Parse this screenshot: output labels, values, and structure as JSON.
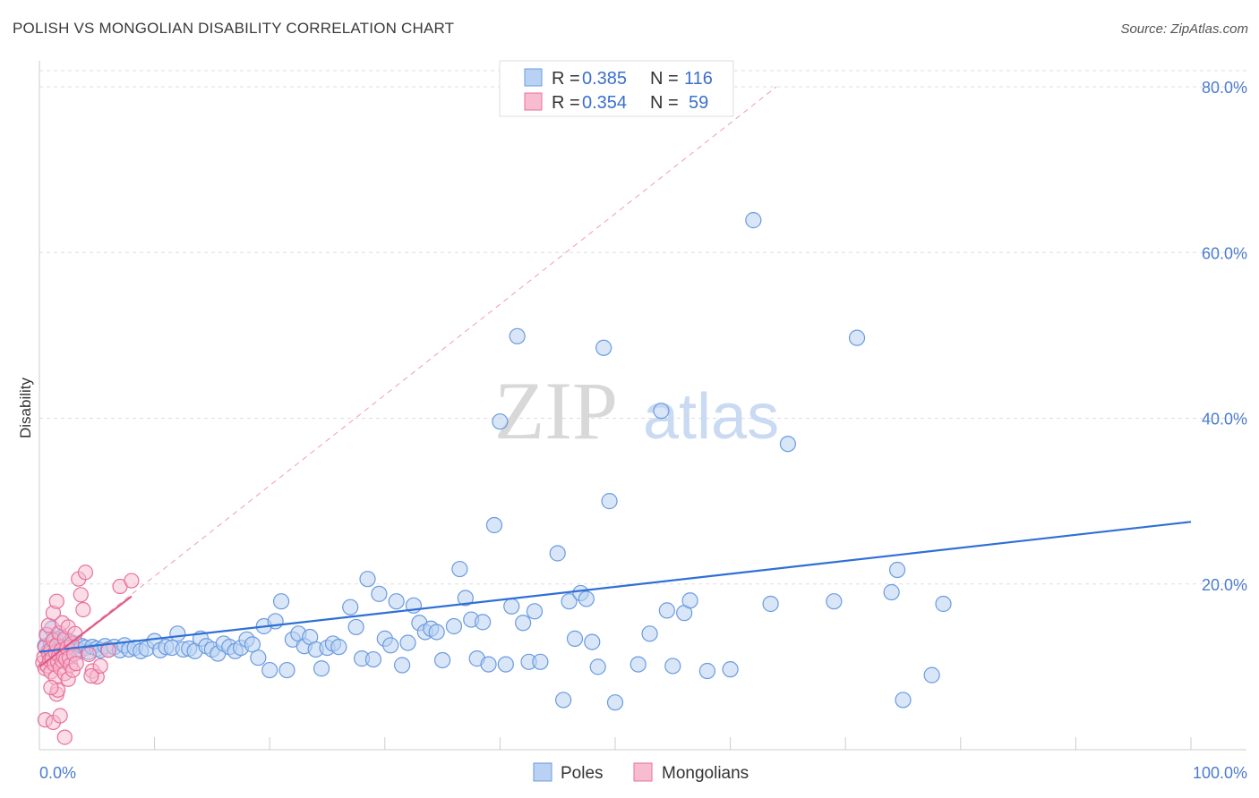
{
  "header": {
    "title": "POLISH VS MONGOLIAN DISABILITY CORRELATION CHART",
    "source": "Source: ZipAtlas.com"
  },
  "watermark": {
    "zip": "ZIP",
    "atlas": "atlas"
  },
  "colors": {
    "poles": "#6a9be0",
    "poles_fill": "#b9d1f3",
    "mongolians": "#e8709a",
    "mongolians_fill": "#f7bccf",
    "axis_text": "#4a7bd0",
    "grid": "#dddddd"
  },
  "legend": {
    "rows": [
      {
        "r_label": "R = ",
        "r_value": "0.385",
        "n_label": "N = ",
        "n_value": "116"
      },
      {
        "r_label": "R = ",
        "r_value": "0.354",
        "n_label": "N = ",
        "n_value": "59"
      }
    ]
  },
  "bottom_legend": [
    "Poles",
    "Mongolians"
  ],
  "chart_data": {
    "type": "scatter",
    "title": "POLISH VS MONGOLIAN DISABILITY CORRELATION CHART",
    "xlabel": "",
    "ylabel": "Disability",
    "xlim": [
      0,
      100
    ],
    "ylim": [
      0,
      82
    ],
    "x_tick_labels": [
      "0.0%",
      "100.0%"
    ],
    "y_ticks": [
      20,
      40,
      60,
      80
    ],
    "y_tick_labels": [
      "20.0%",
      "40.0%",
      "60.0%",
      "80.0%"
    ],
    "grid": true,
    "legend_position": "top-center",
    "series": [
      {
        "name": "Poles",
        "r": 0.385,
        "n": 116,
        "trend": {
          "x": [
            0,
            100
          ],
          "y": [
            11.8,
            27.5
          ]
        },
        "points": [
          [
            0.5,
            12.5
          ],
          [
            0.7,
            13.8
          ],
          [
            0.8,
            11.9
          ],
          [
            1.0,
            12.8
          ],
          [
            1.1,
            14.6
          ],
          [
            1.3,
            12.1
          ],
          [
            1.4,
            13.3
          ],
          [
            1.5,
            12.4
          ],
          [
            1.6,
            11.7
          ],
          [
            1.8,
            12.9
          ],
          [
            1.9,
            13.5
          ],
          [
            2.0,
            12.2
          ],
          [
            2.1,
            12.7
          ],
          [
            2.2,
            13.1
          ],
          [
            2.3,
            11.8
          ],
          [
            2.5,
            12.4
          ],
          [
            2.6,
            12.0
          ],
          [
            2.7,
            13.0
          ],
          [
            2.9,
            12.3
          ],
          [
            3.1,
            12.8
          ],
          [
            3.3,
            12.0
          ],
          [
            3.5,
            11.9
          ],
          [
            3.7,
            12.5
          ],
          [
            4.0,
            12.3
          ],
          [
            4.3,
            11.8
          ],
          [
            4.6,
            12.4
          ],
          [
            5.0,
            12.2
          ],
          [
            5.3,
            12.0
          ],
          [
            5.7,
            12.5
          ],
          [
            6.0,
            12.1
          ],
          [
            6.5,
            12.4
          ],
          [
            7.0,
            12.0
          ],
          [
            7.4,
            12.6
          ],
          [
            7.8,
            12.1
          ],
          [
            8.3,
            12.3
          ],
          [
            8.8,
            11.9
          ],
          [
            9.3,
            12.2
          ],
          [
            10.0,
            13.1
          ],
          [
            10.5,
            12.0
          ],
          [
            11.0,
            12.4
          ],
          [
            11.5,
            12.3
          ],
          [
            12.0,
            14.0
          ],
          [
            12.5,
            12.1
          ],
          [
            13.0,
            12.2
          ],
          [
            13.5,
            11.9
          ],
          [
            14.0,
            13.4
          ],
          [
            14.5,
            12.5
          ],
          [
            15.0,
            12.1
          ],
          [
            15.5,
            11.6
          ],
          [
            16.0,
            12.8
          ],
          [
            16.5,
            12.4
          ],
          [
            17.0,
            11.9
          ],
          [
            17.5,
            12.3
          ],
          [
            18.0,
            13.3
          ],
          [
            18.5,
            12.7
          ],
          [
            19.0,
            11.1
          ],
          [
            19.5,
            14.9
          ],
          [
            20.0,
            9.6
          ],
          [
            20.5,
            15.5
          ],
          [
            21.0,
            17.9
          ],
          [
            21.5,
            9.6
          ],
          [
            22.0,
            13.3
          ],
          [
            22.5,
            14.0
          ],
          [
            23.0,
            12.5
          ],
          [
            23.5,
            13.6
          ],
          [
            24.0,
            12.1
          ],
          [
            24.5,
            9.8
          ],
          [
            25.0,
            12.3
          ],
          [
            25.5,
            12.8
          ],
          [
            26.0,
            12.4
          ],
          [
            27.0,
            17.2
          ],
          [
            27.5,
            14.8
          ],
          [
            28.0,
            11.0
          ],
          [
            28.5,
            20.6
          ],
          [
            29.0,
            10.9
          ],
          [
            29.5,
            18.8
          ],
          [
            30.0,
            13.4
          ],
          [
            30.5,
            12.6
          ],
          [
            31.0,
            17.9
          ],
          [
            31.5,
            10.2
          ],
          [
            32.0,
            12.9
          ],
          [
            32.5,
            17.4
          ],
          [
            33.0,
            15.3
          ],
          [
            33.5,
            14.2
          ],
          [
            34.0,
            14.6
          ],
          [
            34.5,
            14.2
          ],
          [
            35.0,
            10.8
          ],
          [
            36.0,
            14.9
          ],
          [
            36.5,
            21.8
          ],
          [
            37.0,
            18.3
          ],
          [
            37.5,
            15.7
          ],
          [
            38.0,
            11.0
          ],
          [
            38.5,
            15.4
          ],
          [
            39.0,
            10.3
          ],
          [
            39.5,
            27.1
          ],
          [
            40.0,
            39.6
          ],
          [
            40.5,
            10.3
          ],
          [
            41.0,
            17.3
          ],
          [
            41.5,
            49.9
          ],
          [
            42.0,
            15.3
          ],
          [
            42.5,
            10.6
          ],
          [
            43.0,
            16.7
          ],
          [
            43.5,
            10.6
          ],
          [
            45.0,
            23.7
          ],
          [
            46.0,
            17.9
          ],
          [
            46.5,
            13.4
          ],
          [
            47.0,
            18.9
          ],
          [
            47.5,
            18.2
          ],
          [
            48.0,
            13.0
          ],
          [
            48.5,
            10.0
          ],
          [
            49.0,
            48.5
          ],
          [
            49.5,
            30.0
          ],
          [
            52.0,
            10.3
          ],
          [
            53.0,
            14.0
          ],
          [
            54.0,
            40.9
          ],
          [
            54.5,
            16.8
          ],
          [
            55.0,
            10.1
          ],
          [
            56.0,
            16.5
          ],
          [
            56.5,
            18.0
          ],
          [
            58.0,
            9.5
          ],
          [
            60.0,
            9.7
          ],
          [
            62.0,
            63.9
          ],
          [
            63.5,
            17.6
          ],
          [
            65.0,
            36.9
          ],
          [
            69.0,
            17.9
          ],
          [
            71.0,
            49.7
          ],
          [
            74.0,
            19.0
          ],
          [
            74.5,
            21.7
          ],
          [
            75.0,
            6.0
          ],
          [
            77.5,
            9.0
          ],
          [
            78.5,
            17.6
          ],
          [
            45.5,
            6.0
          ],
          [
            50.0,
            5.7
          ]
        ]
      },
      {
        "name": "Mongolians",
        "r": 0.354,
        "n": 59,
        "trend": {
          "x": [
            0,
            8.0
          ],
          "y": [
            10.0,
            18.5
          ]
        },
        "trend_extended": {
          "x": [
            0,
            64
          ],
          "y": [
            10.0,
            80.0
          ]
        },
        "points": [
          [
            0.3,
            10.5
          ],
          [
            0.4,
            11.2
          ],
          [
            0.5,
            9.8
          ],
          [
            0.5,
            12.4
          ],
          [
            0.6,
            13.9
          ],
          [
            0.7,
            10.1
          ],
          [
            0.8,
            11.6
          ],
          [
            0.8,
            15.0
          ],
          [
            0.9,
            10.8
          ],
          [
            1.0,
            12.1
          ],
          [
            1.0,
            9.4
          ],
          [
            1.1,
            11.0
          ],
          [
            1.2,
            13.2
          ],
          [
            1.2,
            16.5
          ],
          [
            1.3,
            10.3
          ],
          [
            1.4,
            11.8
          ],
          [
            1.4,
            8.7
          ],
          [
            1.5,
            12.6
          ],
          [
            1.5,
            17.9
          ],
          [
            1.6,
            10.6
          ],
          [
            1.7,
            11.4
          ],
          [
            1.7,
            14.1
          ],
          [
            1.8,
            9.9
          ],
          [
            1.9,
            12.0
          ],
          [
            2.0,
            10.7
          ],
          [
            2.0,
            15.3
          ],
          [
            2.1,
            11.3
          ],
          [
            2.2,
            9.2
          ],
          [
            2.2,
            13.4
          ],
          [
            2.3,
            10.9
          ],
          [
            2.4,
            12.3
          ],
          [
            2.5,
            8.5
          ],
          [
            2.5,
            14.8
          ],
          [
            2.6,
            11.1
          ],
          [
            2.7,
            10.2
          ],
          [
            2.8,
            12.8
          ],
          [
            2.9,
            9.6
          ],
          [
            3.0,
            11.5
          ],
          [
            3.1,
            14.0
          ],
          [
            3.2,
            10.4
          ],
          [
            3.4,
            20.6
          ],
          [
            3.6,
            18.7
          ],
          [
            3.8,
            16.9
          ],
          [
            4.0,
            21.4
          ],
          [
            4.3,
            11.5
          ],
          [
            4.6,
            9.5
          ],
          [
            5.0,
            8.8
          ],
          [
            5.3,
            10.1
          ],
          [
            7.0,
            19.7
          ],
          [
            8.0,
            20.4
          ],
          [
            0.5,
            3.6
          ],
          [
            1.2,
            3.3
          ],
          [
            1.5,
            6.7
          ],
          [
            1.6,
            7.2
          ],
          [
            1.8,
            4.1
          ],
          [
            2.2,
            1.5
          ],
          [
            1.0,
            7.5
          ],
          [
            4.5,
            8.9
          ],
          [
            6.0,
            12.0
          ]
        ]
      }
    ]
  }
}
